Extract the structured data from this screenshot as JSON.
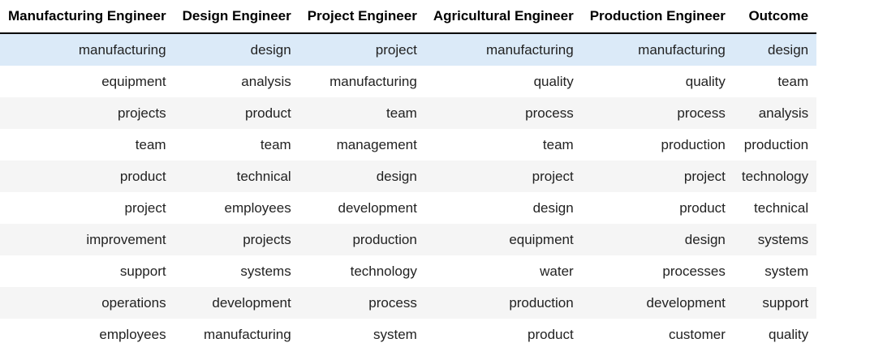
{
  "table": {
    "headers": [
      "Manufacturing Engineer",
      "Design Engineer",
      "Project Engineer",
      "Agricultural Engineer",
      "Production Engineer",
      "Outcome"
    ],
    "rows": [
      [
        "manufacturing",
        "design",
        "project",
        "manufacturing",
        "manufacturing",
        "design"
      ],
      [
        "equipment",
        "analysis",
        "manufacturing",
        "quality",
        "quality",
        "team"
      ],
      [
        "projects",
        "product",
        "team",
        "process",
        "process",
        "analysis"
      ],
      [
        "team",
        "team",
        "management",
        "team",
        "production",
        "production"
      ],
      [
        "product",
        "technical",
        "design",
        "project",
        "project",
        "technology"
      ],
      [
        "project",
        "employees",
        "development",
        "design",
        "product",
        "technical"
      ],
      [
        "improvement",
        "projects",
        "production",
        "equipment",
        "design",
        "systems"
      ],
      [
        "support",
        "systems",
        "technology",
        "water",
        "processes",
        "system"
      ],
      [
        "operations",
        "development",
        "process",
        "production",
        "development",
        "support"
      ],
      [
        "employees",
        "manufacturing",
        "system",
        "product",
        "customer",
        "quality"
      ]
    ],
    "highlight_color": "#dbeaf8",
    "stripe_color": "#f5f5f5"
  }
}
